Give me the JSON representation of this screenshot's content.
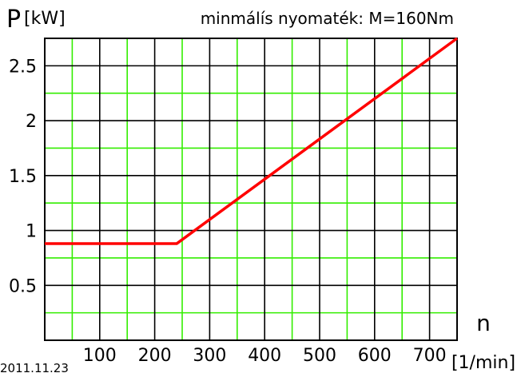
{
  "chart_data": {
    "type": "line",
    "title": "minmálís nyomaték: M=160Nm",
    "ylabel": "P",
    "yunit": "[kW]",
    "xlabel": "n",
    "xunit": "[1/min]",
    "date": "2011.11.23",
    "xlim": [
      0,
      750
    ],
    "ylim": [
      0,
      2.75
    ],
    "x_ticks": [
      100,
      200,
      300,
      400,
      500,
      600,
      700
    ],
    "x_tick_labels": [
      "100",
      "200",
      "300",
      "400",
      "500",
      "600",
      "700"
    ],
    "y_ticks": [
      0.5,
      1,
      1.5,
      2,
      2.5
    ],
    "y_tick_labels": [
      "0.5",
      "1",
      "1.5",
      "2",
      "2.5"
    ],
    "grid": true,
    "series": [
      {
        "x": [
          0,
          240,
          750
        ],
        "y": [
          0.88,
          0.88,
          2.75
        ]
      }
    ],
    "colors": {
      "series": "#ff0000",
      "major_grid": "#000000",
      "minor_grid": "#33ee00",
      "frame": "#000000"
    }
  }
}
